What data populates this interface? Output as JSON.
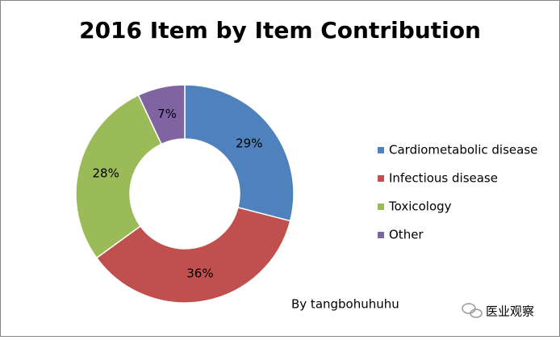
{
  "chart_data": {
    "type": "pie",
    "title": "2016 Item by Item Contribution",
    "categories": [
      "Cardiometabolic disease",
      "Infectious disease",
      "Toxicology",
      "Other"
    ],
    "values": [
      29,
      36,
      28,
      7
    ],
    "value_labels": [
      "29%",
      "36%",
      "28%",
      "7%"
    ],
    "colors": [
      "#4f81bd",
      "#c0504d",
      "#9bbb59",
      "#8064a2"
    ],
    "legend": "right",
    "annotation": "By tangbohuhuhu",
    "watermark": "医业观察"
  }
}
